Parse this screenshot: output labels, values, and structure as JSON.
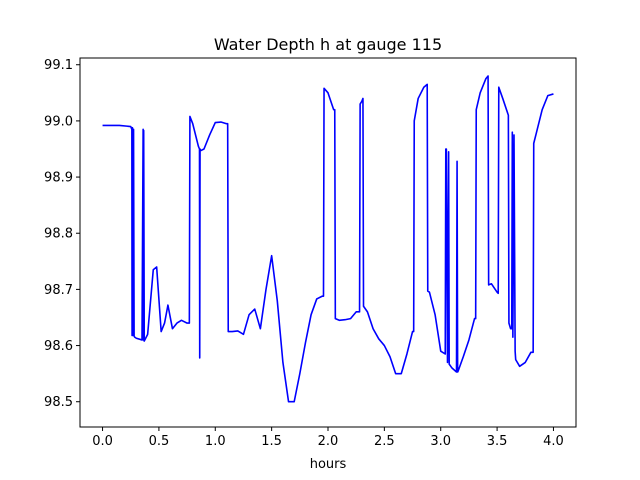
{
  "chart_data": {
    "type": "line",
    "title": "Water Depth h at gauge 115",
    "xlabel": "hours",
    "ylabel": "",
    "xlim": [
      -0.2,
      4.2
    ],
    "ylim": [
      98.455,
      99.112
    ],
    "x_ticks": [
      0.0,
      0.5,
      1.0,
      1.5,
      2.0,
      2.5,
      3.0,
      3.5,
      4.0
    ],
    "x_tick_labels": [
      "0.0",
      "0.5",
      "1.0",
      "1.5",
      "2.0",
      "2.5",
      "3.0",
      "3.5",
      "4.0"
    ],
    "y_ticks": [
      98.5,
      98.6,
      98.7,
      98.8,
      98.9,
      99.0,
      99.1
    ],
    "y_tick_labels": [
      "98.5",
      "98.6",
      "98.7",
      "98.8",
      "98.9",
      "99.0",
      "99.1"
    ],
    "grid": false,
    "series": [
      {
        "color": "#0000ff",
        "x": [
          0.0,
          0.15,
          0.25,
          0.26,
          0.262,
          0.265,
          0.27,
          0.275,
          0.28,
          0.285,
          0.3,
          0.35,
          0.36,
          0.362,
          0.365,
          0.37,
          0.4,
          0.45,
          0.48,
          0.52,
          0.55,
          0.58,
          0.62,
          0.66,
          0.7,
          0.75,
          0.77,
          0.775,
          0.8,
          0.85,
          0.86,
          0.862,
          0.865,
          0.87,
          0.9,
          0.95,
          1.0,
          1.05,
          1.1,
          1.11,
          1.115,
          1.15,
          1.2,
          1.25,
          1.3,
          1.35,
          1.4,
          1.45,
          1.5,
          1.55,
          1.6,
          1.65,
          1.7,
          1.75,
          1.8,
          1.85,
          1.9,
          1.95,
          1.96,
          1.965,
          2.0,
          2.05,
          2.06,
          2.065,
          2.1,
          2.15,
          2.2,
          2.25,
          2.28,
          2.285,
          2.3,
          2.31,
          2.315,
          2.35,
          2.4,
          2.45,
          2.5,
          2.55,
          2.6,
          2.65,
          2.7,
          2.75,
          2.76,
          2.765,
          2.8,
          2.85,
          2.88,
          2.885,
          2.9,
          2.95,
          3.0,
          3.04,
          3.045,
          3.05,
          3.06,
          3.07,
          3.075,
          3.1,
          3.14,
          3.145,
          3.15,
          3.155,
          3.2,
          3.25,
          3.3,
          3.31,
          3.315,
          3.35,
          3.4,
          3.42,
          3.425,
          3.45,
          3.5,
          3.51,
          3.515,
          3.55,
          3.6,
          3.605,
          3.62,
          3.63,
          3.635,
          3.64,
          3.65,
          3.66,
          3.665,
          3.7,
          3.75,
          3.8,
          3.82,
          3.825,
          3.85,
          3.9,
          3.95,
          4.0
        ],
        "y": [
          98.992,
          98.992,
          98.99,
          98.985,
          98.618,
          98.988,
          98.618,
          98.985,
          98.617,
          98.615,
          98.613,
          98.61,
          98.985,
          98.61,
          98.983,
          98.608,
          98.62,
          98.735,
          98.74,
          98.625,
          98.64,
          98.672,
          98.63,
          98.64,
          98.645,
          98.64,
          98.64,
          99.008,
          98.995,
          98.955,
          98.95,
          98.578,
          98.95,
          98.947,
          98.95,
          98.975,
          98.997,
          98.998,
          98.995,
          98.995,
          98.625,
          98.625,
          98.626,
          98.62,
          98.655,
          98.665,
          98.63,
          98.7,
          98.76,
          98.68,
          98.57,
          98.5,
          98.5,
          98.55,
          98.605,
          98.655,
          98.683,
          98.688,
          98.688,
          99.058,
          99.05,
          99.02,
          99.02,
          98.648,
          98.645,
          98.646,
          98.648,
          98.66,
          98.66,
          99.03,
          99.035,
          99.04,
          98.67,
          98.66,
          98.63,
          98.612,
          98.6,
          98.58,
          98.55,
          98.55,
          98.585,
          98.625,
          98.625,
          99.0,
          99.04,
          99.06,
          99.065,
          98.697,
          98.695,
          98.655,
          98.59,
          98.585,
          98.95,
          98.95,
          98.57,
          98.945,
          98.567,
          98.56,
          98.553,
          98.928,
          98.553,
          98.555,
          98.58,
          98.61,
          98.648,
          98.648,
          99.02,
          99.05,
          99.075,
          99.08,
          98.708,
          98.71,
          98.695,
          98.693,
          99.06,
          99.04,
          99.01,
          98.64,
          98.63,
          98.63,
          98.98,
          98.615,
          98.975,
          98.59,
          98.575,
          98.563,
          98.57,
          98.588,
          98.588,
          98.96,
          98.98,
          99.02,
          99.045,
          99.048
        ]
      }
    ]
  }
}
